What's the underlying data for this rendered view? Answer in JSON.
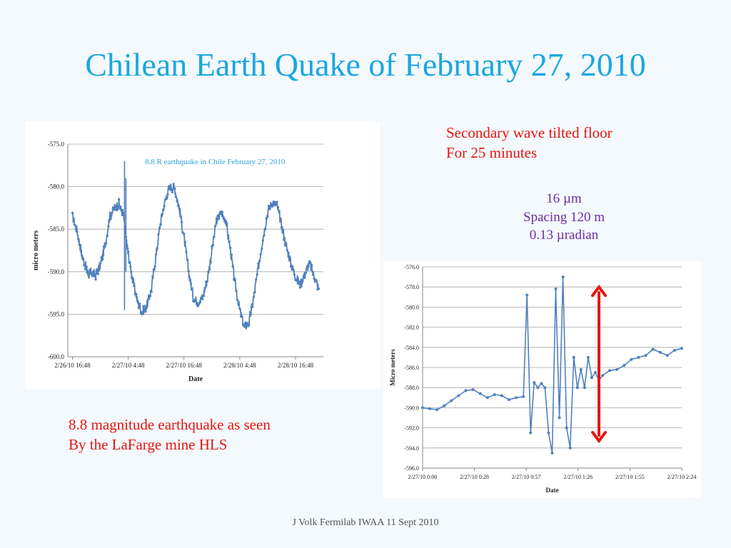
{
  "slide": {
    "title": "Chilean Earth Quake of February 27, 2010",
    "note_top": [
      "Secondary wave tilted floor",
      "For 25 minutes"
    ],
    "tilt_info": [
      "16 µm",
      "Spacing 120 m",
      "0.13 µradian"
    ],
    "caption": [
      "8.8 magnitude earthquake as seen",
      "By the LaFarge mine HLS"
    ],
    "footer": "J Volk Fermilab IWAA 11 Sept 2010",
    "colors": {
      "title": "#1aa7e0",
      "red": "#e8140f",
      "purple": "#6a2ea3",
      "series": "#4f81bd",
      "arrow": "#e8140f"
    }
  },
  "chart_data": [
    {
      "type": "line",
      "title": "8.8 R earthquake in Chile February 27, 2010",
      "xlabel": "Date",
      "ylabel": "micro meters",
      "x_tick_labels": [
        "2/26/10 16:48",
        "2/27/10 4:48",
        "2/27/10 16:48",
        "2/28/10 4:48",
        "2/28/10 16:48"
      ],
      "y_tick_labels": [
        "-575.0",
        "-580.0",
        "-585.0",
        "-590.0",
        "-595.0",
        "-600.0"
      ],
      "ylim": [
        -600,
        -575
      ],
      "xlim_hours": [
        -1,
        54
      ],
      "grid": "horizontal",
      "series": [
        {
          "hours_from_2_26_16_48": [
            0,
            1,
            2,
            3,
            3.5,
            4,
            5,
            6,
            7,
            8,
            9,
            10,
            11,
            11.5,
            12,
            13,
            14,
            15,
            16,
            17,
            18,
            19,
            20,
            21,
            22,
            23,
            24,
            25,
            26,
            27,
            28,
            29,
            30,
            31,
            32,
            33,
            34,
            35,
            36,
            37,
            38,
            39,
            40,
            41,
            42,
            43,
            44,
            45,
            46,
            47,
            48,
            49,
            50,
            51,
            52,
            53
          ],
          "values": [
            -583.5,
            -585.2,
            -588.0,
            -589.6,
            -590.4,
            -590.0,
            -590.4,
            -589.2,
            -587.0,
            -583.5,
            -582.5,
            -582.0,
            -583.5,
            -586.0,
            -588.0,
            -591.0,
            -593.5,
            -594.8,
            -594.0,
            -592.0,
            -588.0,
            -584.0,
            -581.5,
            -580.0,
            -580.2,
            -582.5,
            -586.0,
            -590.0,
            -593.0,
            -593.6,
            -593.0,
            -591.0,
            -587.5,
            -584.0,
            -583.0,
            -584.0,
            -587.5,
            -591.5,
            -594.5,
            -596.5,
            -596.0,
            -593.0,
            -589.5,
            -586.0,
            -583.0,
            -581.8,
            -582.2,
            -584.5,
            -587.0,
            -589.0,
            -590.5,
            -591.5,
            -590.3,
            -589.0,
            -590.5,
            -592.0
          ]
        }
      ],
      "spike_events": [
        {
          "hour": 11.2,
          "min": -594.5,
          "max": -577.0
        },
        {
          "hour": 11.5,
          "min": -590.0,
          "max": -579.0
        }
      ]
    },
    {
      "type": "line",
      "title": "",
      "xlabel": "Date",
      "ylabel": "Micro meters",
      "x_tick_labels": [
        "2/27/10 0:00",
        "2/27/10 0:28",
        "2/27/10 0:57",
        "2/27/10 1:26",
        "2/27/10 1:55",
        "2/27/10 2:24"
      ],
      "y_tick_labels": [
        "-576.0",
        "-578.0",
        "-580.0",
        "-582.0",
        "-584.0",
        "-586.0",
        "-588.0",
        "-590.0",
        "-592.0",
        "-594.0",
        "-596.0"
      ],
      "ylim": [
        -596,
        -576
      ],
      "xlim_minutes": [
        0,
        144
      ],
      "grid": "horizontal",
      "series": [
        {
          "minutes": [
            0,
            4,
            8,
            12,
            16,
            20,
            24,
            28,
            32,
            36,
            40,
            44,
            48,
            52,
            56,
            58,
            60,
            62,
            64,
            66,
            68,
            70,
            72,
            74,
            76,
            78,
            80,
            82,
            84,
            86,
            88,
            90,
            92,
            94,
            96,
            98,
            100,
            104,
            108,
            112,
            116,
            120,
            124,
            128,
            132,
            136,
            140,
            144
          ],
          "values": [
            -590.0,
            -590.1,
            -590.2,
            -589.8,
            -589.3,
            -588.8,
            -588.3,
            -588.2,
            -588.6,
            -589.0,
            -588.7,
            -588.8,
            -589.2,
            -589.0,
            -588.9,
            -578.8,
            -592.5,
            -587.5,
            -588.0,
            -587.6,
            -588.0,
            -592.5,
            -594.5,
            -578.2,
            -591.0,
            -577.0,
            -592.0,
            -594.0,
            -585.0,
            -588.0,
            -586.2,
            -588.0,
            -585.0,
            -587.0,
            -586.5,
            -587.3,
            -586.8,
            -586.3,
            -586.2,
            -585.8,
            -585.2,
            -585.0,
            -584.8,
            -584.2,
            -584.5,
            -584.8,
            -584.3,
            -584.1
          ]
        }
      ],
      "annotation": {
        "type": "double-arrow",
        "minutes": 98,
        "from": -578.0,
        "to": -593.3
      }
    }
  ]
}
